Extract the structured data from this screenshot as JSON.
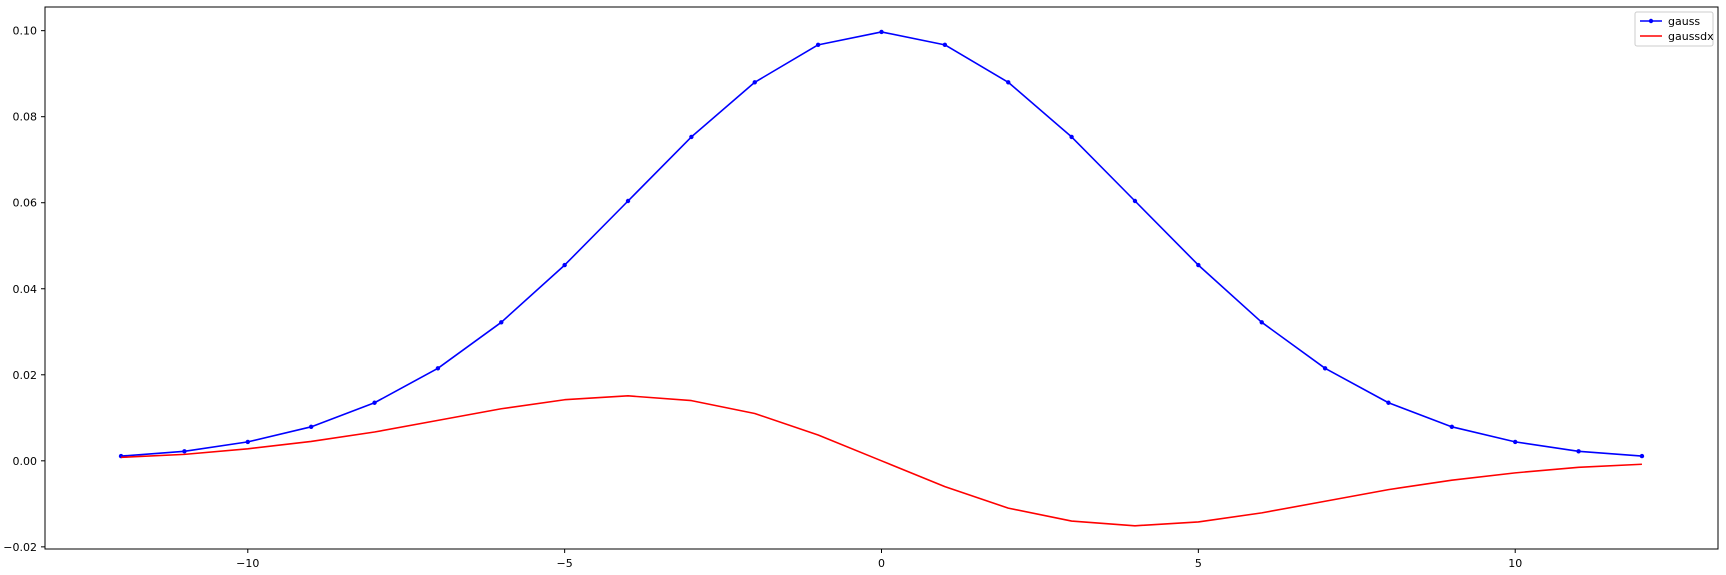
{
  "chart_data": {
    "type": "line",
    "title": "",
    "xlabel": "",
    "ylabel": "",
    "xlim": [
      -13.2,
      13.2
    ],
    "ylim": [
      -0.0205,
      0.1055
    ],
    "x_ticks": [
      -10,
      -5,
      0,
      5,
      10
    ],
    "x_tick_labels": [
      "−10",
      "−5",
      "0",
      "5",
      "10"
    ],
    "y_ticks": [
      -0.02,
      0.0,
      0.02,
      0.04,
      0.06,
      0.08,
      0.1
    ],
    "y_tick_labels": [
      "−0.02",
      "0.00",
      "0.02",
      "0.04",
      "0.06",
      "0.08",
      "0.10"
    ],
    "grid": false,
    "legend_position": "top-right",
    "x": [
      -12,
      -11,
      -10,
      -9,
      -8,
      -7,
      -6,
      -5,
      -4,
      -3,
      -2,
      -1,
      0,
      1,
      2,
      3,
      4,
      5,
      6,
      7,
      8,
      9,
      10,
      11,
      12
    ],
    "series": [
      {
        "name": "gauss",
        "color": "#0000ff",
        "marker": "dot",
        "values": [
          0.0011,
          0.0022,
          0.0044,
          0.0079,
          0.0135,
          0.0215,
          0.0322,
          0.0455,
          0.0604,
          0.0753,
          0.088,
          0.0967,
          0.0997,
          0.0967,
          0.088,
          0.0753,
          0.0604,
          0.0455,
          0.0322,
          0.0215,
          0.0135,
          0.0079,
          0.0044,
          0.0022,
          0.0011
        ]
      },
      {
        "name": "gaussdx",
        "color": "#ff0000",
        "marker": "none",
        "values": [
          0.0008,
          0.0015,
          0.0028,
          0.0045,
          0.0067,
          0.0094,
          0.0121,
          0.0142,
          0.0151,
          0.014,
          0.011,
          0.006,
          0.0,
          -0.006,
          -0.011,
          -0.014,
          -0.0151,
          -0.0142,
          -0.0121,
          -0.0094,
          -0.0067,
          -0.0045,
          -0.0028,
          -0.0015,
          -0.0008
        ]
      }
    ]
  }
}
